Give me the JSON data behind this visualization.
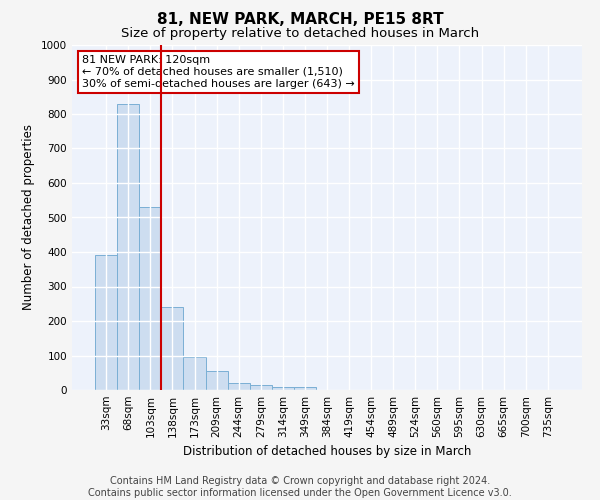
{
  "title": "81, NEW PARK, MARCH, PE15 8RT",
  "subtitle": "Size of property relative to detached houses in March",
  "xlabel": "Distribution of detached houses by size in March",
  "ylabel": "Number of detached properties",
  "categories": [
    "33sqm",
    "68sqm",
    "103sqm",
    "138sqm",
    "173sqm",
    "209sqm",
    "244sqm",
    "279sqm",
    "314sqm",
    "349sqm",
    "384sqm",
    "419sqm",
    "454sqm",
    "489sqm",
    "524sqm",
    "560sqm",
    "595sqm",
    "630sqm",
    "665sqm",
    "700sqm",
    "735sqm"
  ],
  "values": [
    390,
    830,
    530,
    240,
    95,
    55,
    20,
    15,
    10,
    8,
    0,
    0,
    0,
    0,
    0,
    0,
    0,
    0,
    0,
    0,
    0
  ],
  "bar_color": "#cdddf0",
  "bar_edge_color": "#7aafd4",
  "vline_index": 2,
  "vline_color": "#cc0000",
  "annotation_text": "81 NEW PARK: 120sqm\n← 70% of detached houses are smaller (1,510)\n30% of semi-detached houses are larger (643) →",
  "annotation_box_color": "#ffffff",
  "annotation_box_edge": "#cc0000",
  "ylim": [
    0,
    1000
  ],
  "yticks": [
    0,
    100,
    200,
    300,
    400,
    500,
    600,
    700,
    800,
    900,
    1000
  ],
  "footer1": "Contains HM Land Registry data © Crown copyright and database right 2024.",
  "footer2": "Contains public sector information licensed under the Open Government Licence v3.0.",
  "bg_color": "#edf2fb",
  "grid_color": "#ffffff",
  "title_fontsize": 11,
  "subtitle_fontsize": 9.5,
  "axis_label_fontsize": 8.5,
  "tick_fontsize": 7.5,
  "annotation_fontsize": 8,
  "footer_fontsize": 7
}
